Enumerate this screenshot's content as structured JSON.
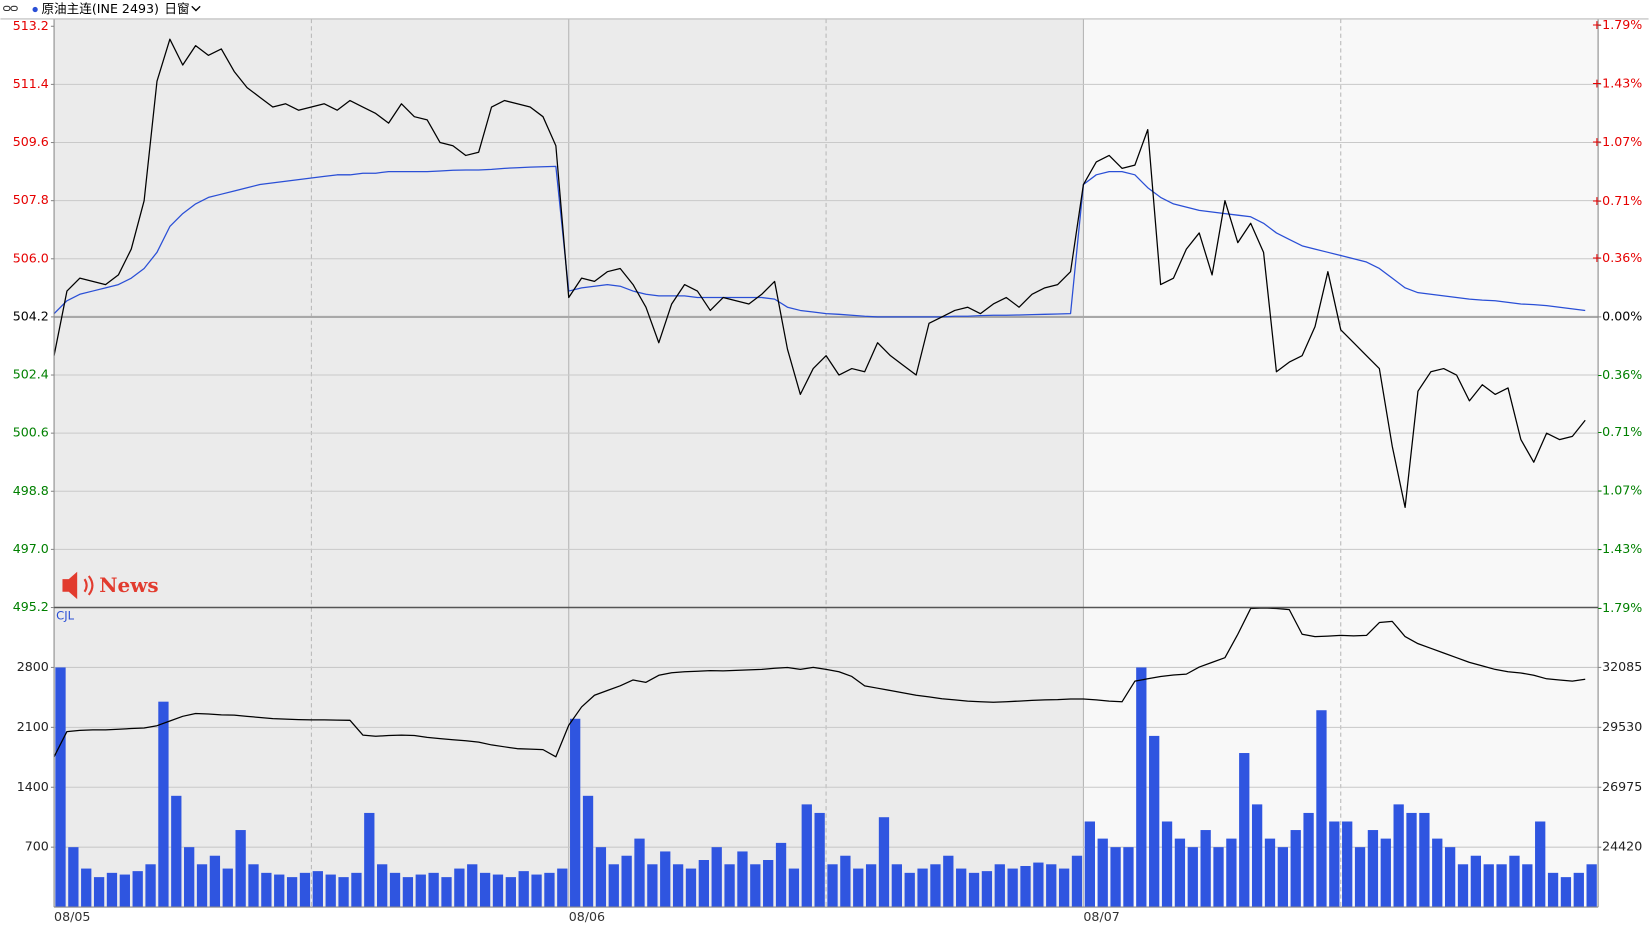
{
  "header": {
    "symbol": "原油主连(INE 2493)",
    "window": "日窗"
  },
  "news": "News",
  "chart_data": [
    {
      "type": "line",
      "up_color": "#e60000",
      "down_color": "#008000",
      "grid": true,
      "ylim": [
        495.2,
        513.2
      ],
      "yticks": [
        495.2,
        {
          "value": 497.0,
          "label": "497.0"
        },
        498.8,
        500.6,
        502.4,
        504.2,
        {
          "value": 506.0,
          "label": "506.0"
        },
        507.8,
        509.6,
        511.4,
        513.2
      ],
      "y2lim": [
        -1.785,
        1.785
      ],
      "y2ticks": [
        {
          "value": -1.79,
          "label": "-1.79%"
        },
        {
          "value": -1.43,
          "label": "-1.43%"
        },
        {
          "value": -1.07,
          "label": "-1.07%"
        },
        {
          "value": -0.71,
          "label": "-0.71%"
        },
        {
          "value": -0.36,
          "label": "-0.36%"
        },
        {
          "value": 0,
          "label": "0.00%"
        },
        {
          "value": 0.36,
          "label": "+0.36%"
        },
        {
          "value": 0.71,
          "label": "+0.71%"
        },
        {
          "value": 1.07,
          "label": "+1.07%"
        },
        {
          "value": 1.43,
          "label": "+1.43%"
        },
        {
          "value": 1.79,
          "label": "+1.79%"
        }
      ],
      "series": [
        {
          "color": "#2a4fd6",
          "values": [
            504.3,
            504.7,
            504.9,
            505.0,
            505.1,
            505.2,
            505.4,
            505.7,
            506.2,
            507.0,
            507.4,
            507.7,
            507.9,
            508.0,
            508.1,
            508.2,
            508.3,
            508.35,
            508.4,
            508.45,
            508.5,
            508.55,
            508.6,
            508.6,
            508.65,
            508.65,
            508.7,
            508.7,
            508.7,
            508.7,
            508.72,
            508.74,
            508.75,
            508.75,
            508.77,
            508.8,
            508.82,
            508.84,
            508.85,
            508.86,
            505.0,
            505.1,
            505.15,
            505.2,
            505.15,
            505.0,
            504.9,
            504.85,
            504.85,
            504.85,
            504.8,
            504.8,
            504.8,
            504.8,
            504.8,
            504.8,
            504.75,
            504.5,
            504.4,
            504.35,
            504.3,
            504.28,
            504.25,
            504.22,
            504.2,
            504.2,
            504.2,
            504.2,
            504.2,
            504.2,
            504.22,
            504.22,
            504.24,
            504.25,
            504.25,
            504.26,
            504.27,
            504.28,
            504.29,
            504.3,
            508.3,
            508.6,
            508.7,
            508.7,
            508.6,
            508.2,
            507.9,
            507.7,
            507.6,
            507.5,
            507.45,
            507.4,
            507.35,
            507.3,
            507.1,
            506.8,
            506.6,
            506.4,
            506.3,
            506.2,
            506.1,
            506.0,
            505.9,
            505.7,
            505.4,
            505.1,
            504.95,
            504.9,
            504.85,
            504.8,
            504.75,
            504.72,
            504.7,
            504.65,
            504.6,
            504.58,
            504.55,
            504.5,
            504.45,
            504.4
          ]
        },
        {
          "color": "#000000",
          "values": [
            503.0,
            505.0,
            505.4,
            505.3,
            505.2,
            505.5,
            506.3,
            507.8,
            511.5,
            512.8,
            512.0,
            512.6,
            512.3,
            512.5,
            511.8,
            511.3,
            511.0,
            510.7,
            510.8,
            510.6,
            510.7,
            510.8,
            510.6,
            510.9,
            510.7,
            510.5,
            510.2,
            510.8,
            510.4,
            510.3,
            509.6,
            509.5,
            509.2,
            509.3,
            510.7,
            510.9,
            510.8,
            510.7,
            510.4,
            509.5,
            504.8,
            505.4,
            505.3,
            505.6,
            505.7,
            505.2,
            504.5,
            503.4,
            504.6,
            505.2,
            505.0,
            504.4,
            504.8,
            504.7,
            504.6,
            504.9,
            505.3,
            503.2,
            501.8,
            502.6,
            503.0,
            502.4,
            502.6,
            502.5,
            503.4,
            503.0,
            502.7,
            502.4,
            504.0,
            504.2,
            504.4,
            504.5,
            504.3,
            504.6,
            504.8,
            504.5,
            504.9,
            505.1,
            505.2,
            505.6,
            508.3,
            509.0,
            509.2,
            508.8,
            508.9,
            510.0,
            505.2,
            505.4,
            506.3,
            506.8,
            505.5,
            507.8,
            506.5,
            507.1,
            506.2,
            502.5,
            502.8,
            503.0,
            503.9,
            505.6,
            503.8,
            503.4,
            503.0,
            502.6,
            500.2,
            498.3,
            501.9,
            502.5,
            502.6,
            502.4,
            501.6,
            502.1,
            501.8,
            502.0,
            500.4,
            499.7,
            500.6,
            500.4,
            500.5,
            501.0
          ]
        }
      ]
    },
    {
      "type": "bar",
      "label": "CJL",
      "grid": true,
      "categories": [
        "08/05",
        null,
        null,
        null,
        null,
        null,
        null,
        null,
        null,
        null,
        null,
        null,
        null,
        null,
        null,
        null,
        null,
        null,
        null,
        null,
        null,
        null,
        null,
        null,
        null,
        null,
        null,
        null,
        null,
        null,
        null,
        null,
        null,
        null,
        null,
        null,
        null,
        null,
        null,
        null,
        "08/06",
        null,
        null,
        null,
        null,
        null,
        null,
        null,
        null,
        null,
        null,
        null,
        null,
        null,
        null,
        null,
        null,
        null,
        null,
        null,
        null,
        null,
        null,
        null,
        null,
        null,
        null,
        null,
        null,
        null,
        null,
        null,
        null,
        null,
        null,
        null,
        null,
        null,
        null,
        null,
        "08/07",
        null,
        null,
        null,
        null,
        null,
        null,
        null,
        null,
        null,
        null,
        null,
        null,
        null,
        null,
        null,
        null,
        null,
        null,
        null,
        null,
        null,
        null,
        null,
        null,
        null,
        null,
        null,
        null,
        null,
        null,
        null,
        null,
        null,
        null,
        null,
        null,
        null,
        null,
        null
      ],
      "ylim": [
        0,
        3500
      ],
      "yticks": [
        700,
        1400,
        2100,
        2800
      ],
      "y2lim": [
        21865,
        34640
      ],
      "y2ticks": [
        24420,
        26975,
        29530,
        32085
      ],
      "series": [
        {
          "type": "bar",
          "color": "#2f55e0",
          "values": [
            2800,
            700,
            450,
            350,
            400,
            380,
            420,
            500,
            2400,
            1300,
            700,
            500,
            600,
            450,
            900,
            500,
            400,
            380,
            350,
            400,
            420,
            380,
            350,
            400,
            1100,
            500,
            400,
            350,
            380,
            400,
            350,
            450,
            500,
            400,
            380,
            350,
            420,
            380,
            400,
            450,
            2200,
            1300,
            700,
            500,
            600,
            800,
            500,
            650,
            500,
            450,
            550,
            700,
            500,
            650,
            500,
            550,
            750,
            450,
            1200,
            1100,
            500,
            600,
            450,
            500,
            1050,
            500,
            400,
            450,
            500,
            600,
            450,
            400,
            420,
            500,
            450,
            480,
            520,
            500,
            450,
            600,
            1000,
            800,
            700,
            700,
            2800,
            2000,
            1000,
            800,
            700,
            900,
            700,
            800,
            1800,
            1200,
            800,
            700,
            900,
            1100,
            2300,
            1000,
            1000,
            700,
            900,
            800,
            1200,
            1100,
            1100,
            800,
            700,
            500,
            600,
            500,
            500,
            600,
            500,
            1000,
            400,
            350,
            400,
            500
          ]
        },
        {
          "type": "line",
          "axis": "y2",
          "color": "#000000",
          "values": [
            28275,
            29350,
            29400,
            29420,
            29420,
            29450,
            29480,
            29500,
            29600,
            29800,
            30000,
            30120,
            30100,
            30060,
            30050,
            30000,
            29950,
            29900,
            29880,
            29860,
            29850,
            29850,
            29840,
            29830,
            29200,
            29150,
            29180,
            29200,
            29180,
            29100,
            29050,
            29000,
            28960,
            28900,
            28780,
            28700,
            28620,
            28600,
            28580,
            28275,
            29620,
            30400,
            30900,
            31100,
            31300,
            31550,
            31450,
            31750,
            31860,
            31900,
            31920,
            31950,
            31940,
            31960,
            31980,
            32000,
            32050,
            32080,
            32000,
            32090,
            32000,
            31900,
            31700,
            31300,
            31200,
            31100,
            31000,
            30900,
            30830,
            30750,
            30700,
            30650,
            30620,
            30600,
            30620,
            30650,
            30680,
            30700,
            30710,
            30740,
            30740,
            30700,
            30650,
            30620,
            31500,
            31600,
            31700,
            31760,
            31800,
            32100,
            32300,
            32500,
            33500,
            34600,
            34620,
            34600,
            34550,
            33500,
            33400,
            33420,
            33450,
            33430,
            33450,
            34000,
            34050,
            33400,
            33100,
            32900,
            32700,
            32500,
            32300,
            32150,
            32000,
            31900,
            31850,
            31750,
            31600,
            31550,
            31500,
            31580
          ]
        }
      ]
    }
  ]
}
